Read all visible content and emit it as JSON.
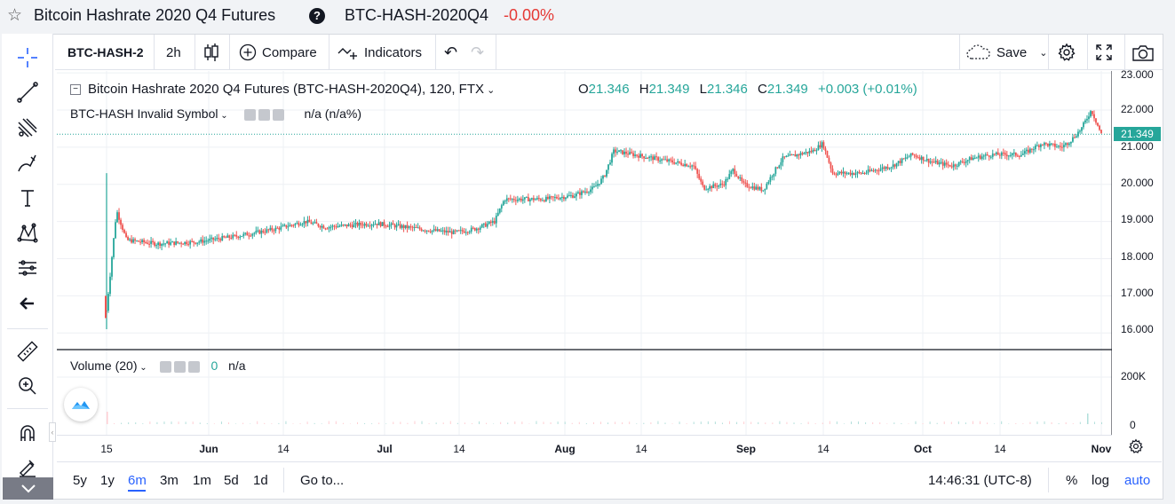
{
  "header": {
    "title": "Bitcoin Hashrate 2020 Q4 Futures",
    "help_icon": "?",
    "ticker": "BTC-HASH-2020Q4",
    "change": "-0.00%"
  },
  "toolbar": {
    "symbol": "BTC-HASH-2",
    "interval": "2h",
    "compare_label": "Compare",
    "indicators_label": "Indicators",
    "save_label": "Save"
  },
  "legend": {
    "main_title": "Bitcoin Hashrate 2020 Q4 Futures (BTC-HASH-2020Q4), 120, FTX",
    "o_label": "O",
    "o_val": "21.346",
    "h_label": "H",
    "h_val": "21.349",
    "l_label": "L",
    "l_val": "21.346",
    "c_label": "C",
    "c_val": "21.349",
    "chg": "+0.003 (+0.01%)",
    "invalid_symbol": "BTC-HASH Invalid Symbol",
    "invalid_value": "n/a (n/a%)",
    "volume_label": "Volume (20)",
    "volume_zero": "0",
    "volume_value": "n/a"
  },
  "price_axis": {
    "labels": [
      "23.000",
      "22.000",
      "21.000",
      "20.000",
      "19.000",
      "18.000",
      "17.000",
      "16.000"
    ],
    "last_price": "21.349",
    "volume_labels": [
      "200K",
      "0"
    ]
  },
  "time_axis": {
    "labels": [
      "15",
      "Jun",
      "14",
      "Jul",
      "14",
      "Aug",
      "14",
      "Sep",
      "14",
      "Oct",
      "14",
      "Nov"
    ]
  },
  "bottom": {
    "ranges": [
      "5y",
      "1y",
      "6m",
      "3m",
      "1m",
      "5d",
      "1d"
    ],
    "active_range": "6m",
    "goto_label": "Go to...",
    "clock": "14:46:31 (UTC-8)",
    "percent_label": "%",
    "log_label": "log",
    "auto_label": "auto"
  },
  "colors": {
    "up": "#26a69a",
    "down": "#ef5350",
    "accent": "#2962ff"
  },
  "chart_data": {
    "type": "candlestick",
    "ylim": [
      15.5,
      23.2
    ],
    "x_range": [
      "May 15",
      "Nov 1"
    ],
    "x_ticks": [
      "15",
      "Jun",
      "14",
      "Jul",
      "14",
      "Aug",
      "14",
      "Sep",
      "14",
      "Oct",
      "14",
      "Nov"
    ],
    "path_points": [
      [
        0,
        16.6
      ],
      [
        0.01,
        19.3
      ],
      [
        0.02,
        18.5
      ],
      [
        0.05,
        18.4
      ],
      [
        0.09,
        18.45
      ],
      [
        0.13,
        18.6
      ],
      [
        0.17,
        18.8
      ],
      [
        0.2,
        19.0
      ],
      [
        0.22,
        18.85
      ],
      [
        0.27,
        18.95
      ],
      [
        0.3,
        18.85
      ],
      [
        0.33,
        18.75
      ],
      [
        0.35,
        18.7
      ],
      [
        0.37,
        18.8
      ],
      [
        0.39,
        19.0
      ],
      [
        0.4,
        19.6
      ],
      [
        0.44,
        19.6
      ],
      [
        0.47,
        19.7
      ],
      [
        0.49,
        19.9
      ],
      [
        0.5,
        20.2
      ],
      [
        0.51,
        20.9
      ],
      [
        0.53,
        20.8
      ],
      [
        0.57,
        20.6
      ],
      [
        0.59,
        20.5
      ],
      [
        0.6,
        19.9
      ],
      [
        0.62,
        20.0
      ],
      [
        0.63,
        20.4
      ],
      [
        0.64,
        20.0
      ],
      [
        0.66,
        19.85
      ],
      [
        0.67,
        20.3
      ],
      [
        0.68,
        20.7
      ],
      [
        0.71,
        20.9
      ],
      [
        0.72,
        21.1
      ],
      [
        0.73,
        20.3
      ],
      [
        0.76,
        20.3
      ],
      [
        0.79,
        20.5
      ],
      [
        0.81,
        20.8
      ],
      [
        0.83,
        20.6
      ],
      [
        0.85,
        20.5
      ],
      [
        0.87,
        20.7
      ],
      [
        0.89,
        20.8
      ],
      [
        0.92,
        20.8
      ],
      [
        0.94,
        21.1
      ],
      [
        0.96,
        21.0
      ],
      [
        0.97,
        21.2
      ],
      [
        0.98,
        21.5
      ],
      [
        0.99,
        22.0
      ],
      [
        1.0,
        21.35
      ]
    ],
    "last_close": 21.349,
    "volume_max_label": "200K"
  }
}
